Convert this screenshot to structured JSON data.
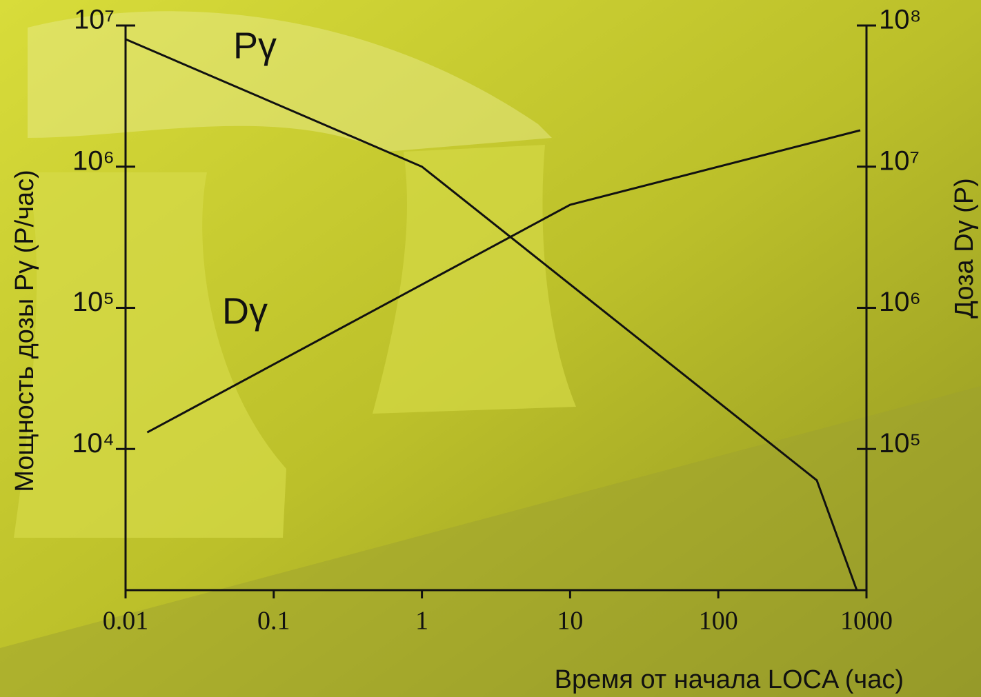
{
  "chart_data": {
    "type": "line",
    "xlabel": "Время от начала LOCA (час)",
    "ylabel": "Мощность дозы Pγ (Р/час)",
    "y2label": "Доза Dγ (Р)",
    "xlog": true,
    "ylog": true,
    "y2log": true,
    "xlim": [
      0.01,
      1000
    ],
    "xticks": [
      0.01,
      0.1,
      1,
      10,
      100,
      1000
    ],
    "ylim": [
      1000,
      10000000
    ],
    "yticks": [
      {
        "value": 10000,
        "label": "10⁴"
      },
      {
        "value": 100000,
        "label": "10⁵"
      },
      {
        "value": 1000000,
        "label": "10⁶"
      },
      {
        "value": 10000000,
        "label": "10⁷"
      }
    ],
    "y2lim": [
      10000,
      100000000
    ],
    "y2ticks": [
      {
        "value": 100000,
        "label": "10⁵"
      },
      {
        "value": 1000000,
        "label": "10⁶"
      },
      {
        "value": 10000000,
        "label": "10⁷"
      },
      {
        "value": 100000000,
        "label": "10⁸"
      }
    ],
    "series": [
      {
        "name": "Pγ",
        "color": "#111111",
        "x": [
          0.01,
          1,
          462,
          860
        ],
        "values": [
          8000000,
          1000000,
          6000,
          1000
        ]
      },
      {
        "name": "Dγ",
        "color": "#111111",
        "axis": "y2",
        "x": [
          0.014,
          10,
          908
        ],
        "values": [
          131000,
          5370000,
          18100000
        ]
      }
    ]
  }
}
